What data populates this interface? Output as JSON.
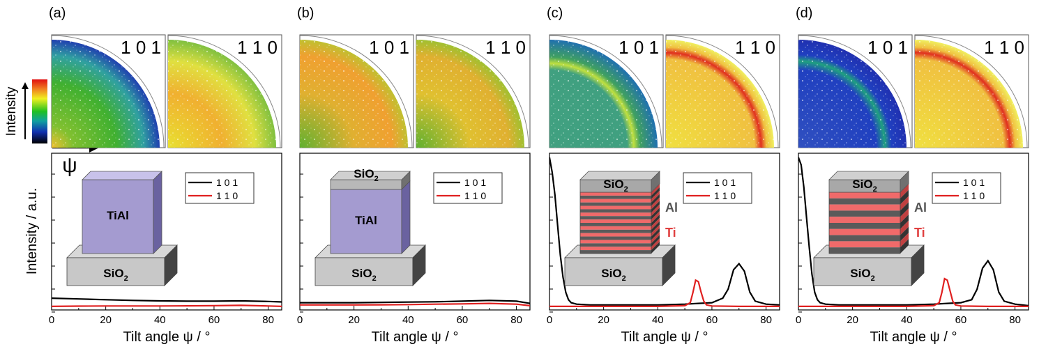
{
  "figure": {
    "y_axis_label": "Intensity / a.u.",
    "x_axis_label": "Tilt angle ψ / °",
    "colorbar_label": "Intensity",
    "psi_symbol": "ψ",
    "x_ticks": [
      "0",
      "20",
      "40",
      "60",
      "80"
    ],
    "colors": {
      "line_101": "#000000",
      "line_110": "#e02020",
      "tial": "#a49bd0",
      "sio2": "#c8c8c8",
      "ti_layer": "#f06a6a",
      "al_layer": "#5a5a5a"
    }
  },
  "panels": [
    {
      "id": "a",
      "label": "(a)",
      "pole_101": "1 0 1",
      "pole_110": "1 1 0",
      "structure": "TiAl single layer",
      "layer_label": "TiAl",
      "substrate_label": "SiO",
      "substrate_sub": "2",
      "cap_label": "",
      "cap_sub": "",
      "al_label": "",
      "ti_label": ""
    },
    {
      "id": "b",
      "label": "(b)",
      "pole_101": "1 0 1",
      "pole_110": "1 1 0",
      "structure": "TiAl with SiO2 cap",
      "layer_label": "TiAl",
      "substrate_label": "SiO",
      "substrate_sub": "2",
      "cap_label": "SiO",
      "cap_sub": "2",
      "al_label": "",
      "ti_label": ""
    },
    {
      "id": "c",
      "label": "(c)",
      "pole_101": "1 0 1",
      "pole_110": "1 1 0",
      "structure": "Ti/Al thin multilayer",
      "layer_label": "",
      "substrate_label": "SiO",
      "substrate_sub": "2",
      "cap_label": "SiO",
      "cap_sub": "2",
      "al_label": "Al",
      "ti_label": "Ti"
    },
    {
      "id": "d",
      "label": "(d)",
      "pole_101": "1 0 1",
      "pole_110": "1 1 0",
      "structure": "Ti/Al thick multilayer",
      "layer_label": "",
      "substrate_label": "SiO",
      "substrate_sub": "2",
      "cap_label": "SiO",
      "cap_sub": "2",
      "al_label": "Al",
      "ti_label": "Ti"
    }
  ],
  "legend": {
    "entry_101": "1 0 1",
    "entry_110": "1 1 0"
  },
  "chart_data": [
    {
      "type": "line",
      "panel": "a",
      "xlabel": "Tilt angle ψ / °",
      "ylabel": "Intensity / a.u.",
      "xlim": [
        0,
        85
      ],
      "ylim": [
        0,
        10
      ],
      "series": [
        {
          "name": "1 0 1",
          "x": [
            0,
            10,
            20,
            30,
            40,
            50,
            60,
            70,
            80,
            85
          ],
          "values": [
            0.6,
            0.55,
            0.5,
            0.45,
            0.42,
            0.4,
            0.4,
            0.42,
            0.38,
            0.35
          ]
        },
        {
          "name": "1 1 0",
          "x": [
            0,
            10,
            20,
            30,
            40,
            50,
            60,
            70,
            80,
            85
          ],
          "values": [
            0.05,
            0.07,
            0.08,
            0.08,
            0.08,
            0.09,
            0.1,
            0.12,
            0.08,
            0.05
          ]
        }
      ]
    },
    {
      "type": "line",
      "panel": "b",
      "xlabel": "Tilt angle ψ / °",
      "ylabel": "Intensity / a.u.",
      "xlim": [
        0,
        85
      ],
      "ylim": [
        0,
        10
      ],
      "series": [
        {
          "name": "1 0 1",
          "x": [
            0,
            10,
            20,
            30,
            40,
            50,
            60,
            70,
            80,
            85
          ],
          "values": [
            0.3,
            0.3,
            0.3,
            0.32,
            0.34,
            0.36,
            0.4,
            0.45,
            0.4,
            0.25
          ]
        },
        {
          "name": "1 1 0",
          "x": [
            0,
            10,
            20,
            30,
            40,
            50,
            60,
            70,
            80,
            85
          ],
          "values": [
            0.15,
            0.15,
            0.15,
            0.16,
            0.17,
            0.2,
            0.22,
            0.25,
            0.2,
            0.1
          ]
        }
      ]
    },
    {
      "type": "line",
      "panel": "c",
      "xlabel": "Tilt angle ψ / °",
      "ylabel": "Intensity / a.u.",
      "xlim": [
        0,
        85
      ],
      "ylim": [
        0,
        10
      ],
      "series": [
        {
          "name": "1 0 1",
          "x": [
            0,
            1,
            2,
            3,
            4,
            5,
            6,
            7,
            8,
            10,
            15,
            20,
            30,
            40,
            50,
            55,
            60,
            64,
            66,
            68,
            70,
            72,
            74,
            76,
            80,
            85
          ],
          "values": [
            10,
            9,
            7.5,
            5.5,
            3.5,
            2,
            1,
            0.5,
            0.3,
            0.2,
            0.15,
            0.15,
            0.15,
            0.15,
            0.2,
            0.25,
            0.3,
            0.6,
            1.2,
            2.5,
            2.9,
            2.4,
            1,
            0.4,
            0.2,
            0.15
          ]
        },
        {
          "name": "1 1 0",
          "x": [
            0,
            10,
            20,
            30,
            40,
            50,
            52,
            53,
            54,
            55,
            56,
            57,
            58,
            60,
            70,
            80,
            85
          ],
          "values": [
            0.05,
            0.05,
            0.05,
            0.05,
            0.05,
            0.1,
            0.3,
            1,
            1.8,
            1.7,
            1,
            0.4,
            0.15,
            0.08,
            0.05,
            0.05,
            0.05
          ]
        }
      ]
    },
    {
      "type": "line",
      "panel": "d",
      "xlabel": "Tilt angle ψ / °",
      "ylabel": "Intensity / a.u.",
      "xlim": [
        0,
        85
      ],
      "ylim": [
        0,
        10
      ],
      "series": [
        {
          "name": "1 0 1",
          "x": [
            0,
            1,
            2,
            3,
            4,
            5,
            6,
            7,
            8,
            10,
            15,
            20,
            30,
            40,
            50,
            55,
            60,
            64,
            66,
            68,
            70,
            72,
            74,
            76,
            80,
            85
          ],
          "values": [
            10,
            9.5,
            8,
            6,
            4,
            2.2,
            1,
            0.5,
            0.3,
            0.2,
            0.15,
            0.15,
            0.15,
            0.15,
            0.2,
            0.25,
            0.3,
            0.5,
            1.2,
            2.6,
            3.1,
            2.5,
            1,
            0.4,
            0.2,
            0.1
          ]
        },
        {
          "name": "1 1 0",
          "x": [
            0,
            10,
            20,
            30,
            40,
            50,
            52,
            53,
            54,
            55,
            56,
            57,
            58,
            60,
            70,
            80,
            85
          ],
          "values": [
            0.05,
            0.05,
            0.05,
            0.05,
            0.05,
            0.1,
            0.3,
            1,
            1.9,
            1.8,
            1.1,
            0.4,
            0.15,
            0.08,
            0.05,
            0.05,
            0.05
          ]
        }
      ]
    }
  ]
}
